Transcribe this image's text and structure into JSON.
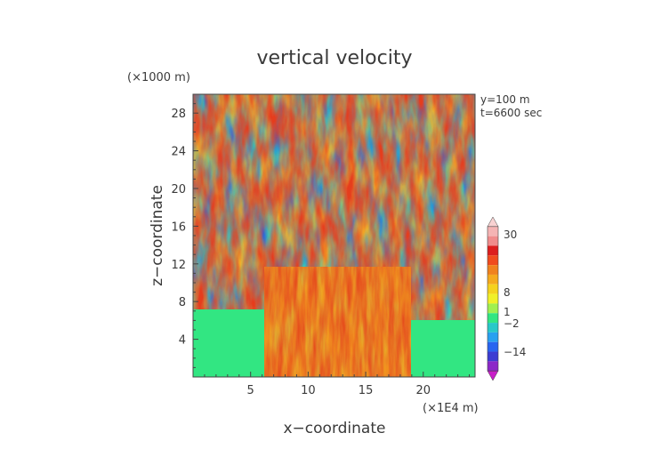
{
  "chart_data": {
    "type": "heatmap",
    "title": "vertical velocity",
    "xlabel": "x−coordinate",
    "ylabel": "z−coordinate",
    "x_unit": "(×1E4 m)",
    "y_unit": "(×1000 m)",
    "xlim": [
      0,
      24.5
    ],
    "ylim": [
      0,
      30
    ],
    "x_ticks": [
      5,
      10,
      15,
      20
    ],
    "x_tick_labels": [
      "5",
      "10",
      "15",
      "20"
    ],
    "y_ticks": [
      4,
      8,
      12,
      16,
      20,
      24,
      28
    ],
    "y_tick_labels": [
      "4",
      "8",
      "12",
      "16",
      "20",
      "24",
      "28"
    ],
    "annotations": [
      "y=100 m",
      "t=6600 sec"
    ],
    "colorbar": {
      "levels": [
        -14,
        -2,
        1,
        8,
        30
      ],
      "tick_labels": [
        "30",
        "8",
        "1",
        "−2",
        "−14"
      ],
      "colors": [
        "#c81ec8",
        "#8c28c8",
        "#3c3cd2",
        "#2864f0",
        "#28a0f0",
        "#28c8c8",
        "#32e682",
        "#a0f050",
        "#f0f028",
        "#f5d21e",
        "#f5aa1e",
        "#f0821e",
        "#f04b1e",
        "#dc1e1e",
        "#f08c8c",
        "#f5b4b4",
        "#f8d2d2"
      ]
    },
    "description_of_field": {
      "lower_region_z_below_6": "near zero (green) outside x 6-19, strong positive updrafts (orange/yellow) inside x 6-19",
      "upper_region": "alternating vertical streaks of updraft (red/orange) and downdraft (blue/purple) across full domain"
    }
  }
}
